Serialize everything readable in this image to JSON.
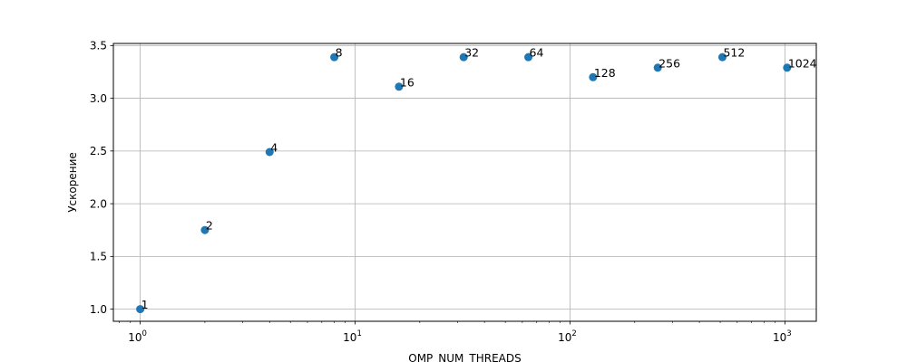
{
  "chart_data": {
    "type": "scatter",
    "title": "",
    "xlabel": "OMP_NUM_THREADS",
    "ylabel": "Ускорение",
    "xscale": "log",
    "xlim": [
      0.75,
      1400
    ],
    "ylim": [
      0.885,
      3.52
    ],
    "grid": true,
    "marker_color": "#1f77b4",
    "x_ticks": [
      {
        "value": 1,
        "base": "10",
        "exp": "0"
      },
      {
        "value": 10,
        "base": "10",
        "exp": "1"
      },
      {
        "value": 100,
        "base": "10",
        "exp": "2"
      },
      {
        "value": 1000,
        "base": "10",
        "exp": "3"
      }
    ],
    "y_ticks": [
      {
        "value": 1.0,
        "label": "1.0"
      },
      {
        "value": 1.5,
        "label": "1.5"
      },
      {
        "value": 2.0,
        "label": "2.0"
      },
      {
        "value": 2.5,
        "label": "2.5"
      },
      {
        "value": 3.0,
        "label": "3.0"
      },
      {
        "value": 3.5,
        "label": "3.5"
      }
    ],
    "points": [
      {
        "x": 1,
        "y": 1.0,
        "label": "1"
      },
      {
        "x": 2,
        "y": 1.75,
        "label": "2"
      },
      {
        "x": 4,
        "y": 2.49,
        "label": "4"
      },
      {
        "x": 8,
        "y": 3.39,
        "label": "8"
      },
      {
        "x": 16,
        "y": 3.11,
        "label": "16"
      },
      {
        "x": 32,
        "y": 3.39,
        "label": "32"
      },
      {
        "x": 64,
        "y": 3.39,
        "label": "64"
      },
      {
        "x": 128,
        "y": 3.2,
        "label": "128"
      },
      {
        "x": 256,
        "y": 3.29,
        "label": "256"
      },
      {
        "x": 512,
        "y": 3.39,
        "label": "512"
      },
      {
        "x": 1024,
        "y": 3.29,
        "label": "1024"
      }
    ]
  }
}
